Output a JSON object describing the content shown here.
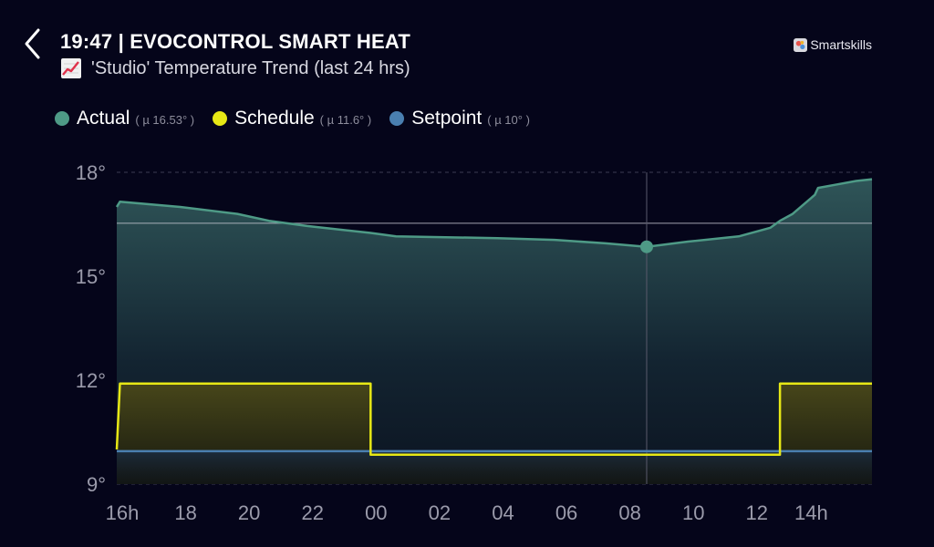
{
  "header": {
    "title": "19:47 | EVOCONTROL SMART HEAT",
    "subtitle_icon": "chart-increasing-icon",
    "subtitle": "'Studio' Temperature Trend (last 24 hrs)",
    "brand": "Smartskills"
  },
  "legend": [
    {
      "name": "Actual",
      "mean": "( µ 16.53° )",
      "color": "#4e9a86"
    },
    {
      "name": "Schedule",
      "mean": "( µ 11.6° )",
      "color": "#e7e815"
    },
    {
      "name": "Setpoint",
      "mean": "( µ 10° )",
      "color": "#4a7fb0"
    }
  ],
  "chart_data": {
    "type": "area",
    "ylim": [
      9,
      18
    ],
    "yticks": [
      9,
      12,
      15,
      18
    ],
    "ytick_labels": [
      "9°",
      "12°",
      "15°",
      "18°"
    ],
    "x_hours": [
      16,
      18,
      20,
      22,
      24,
      26,
      28,
      30,
      32,
      34,
      36,
      38
    ],
    "xtick_labels": [
      "16h",
      "18",
      "20",
      "22",
      "00",
      "02",
      "04",
      "06",
      "08",
      "10",
      "12",
      "14h"
    ],
    "xlim": [
      16,
      39.8
    ],
    "mean_line": 16.53,
    "cursor": {
      "x": 32.7,
      "y": 15.85
    },
    "series": [
      {
        "name": "Actual",
        "color": "#4e9a86",
        "x": [
          16,
          16.1,
          18,
          19.8,
          20.8,
          22,
          24,
          24.8,
          28,
          29.8,
          31.4,
          32.7,
          34,
          35.6,
          36.6,
          36.9,
          37.3,
          38,
          38.1,
          38.7,
          39.3,
          39.8
        ],
        "y": [
          17,
          17.15,
          17.0,
          16.8,
          16.6,
          16.45,
          16.25,
          16.15,
          16.1,
          16.05,
          15.95,
          15.85,
          16.0,
          16.15,
          16.4,
          16.6,
          16.8,
          17.35,
          17.55,
          17.65,
          17.75,
          17.8
        ]
      },
      {
        "name": "Schedule",
        "color": "#e7e815",
        "x": [
          16,
          16.1,
          24,
          24,
          36.9,
          36.9,
          39.8
        ],
        "y": [
          10,
          11.9,
          11.9,
          9.85,
          9.85,
          11.9,
          11.9
        ]
      },
      {
        "name": "Setpoint",
        "color": "#4a7fb0",
        "x": [
          16,
          39.8
        ],
        "y": [
          9.95,
          9.95
        ]
      }
    ]
  }
}
